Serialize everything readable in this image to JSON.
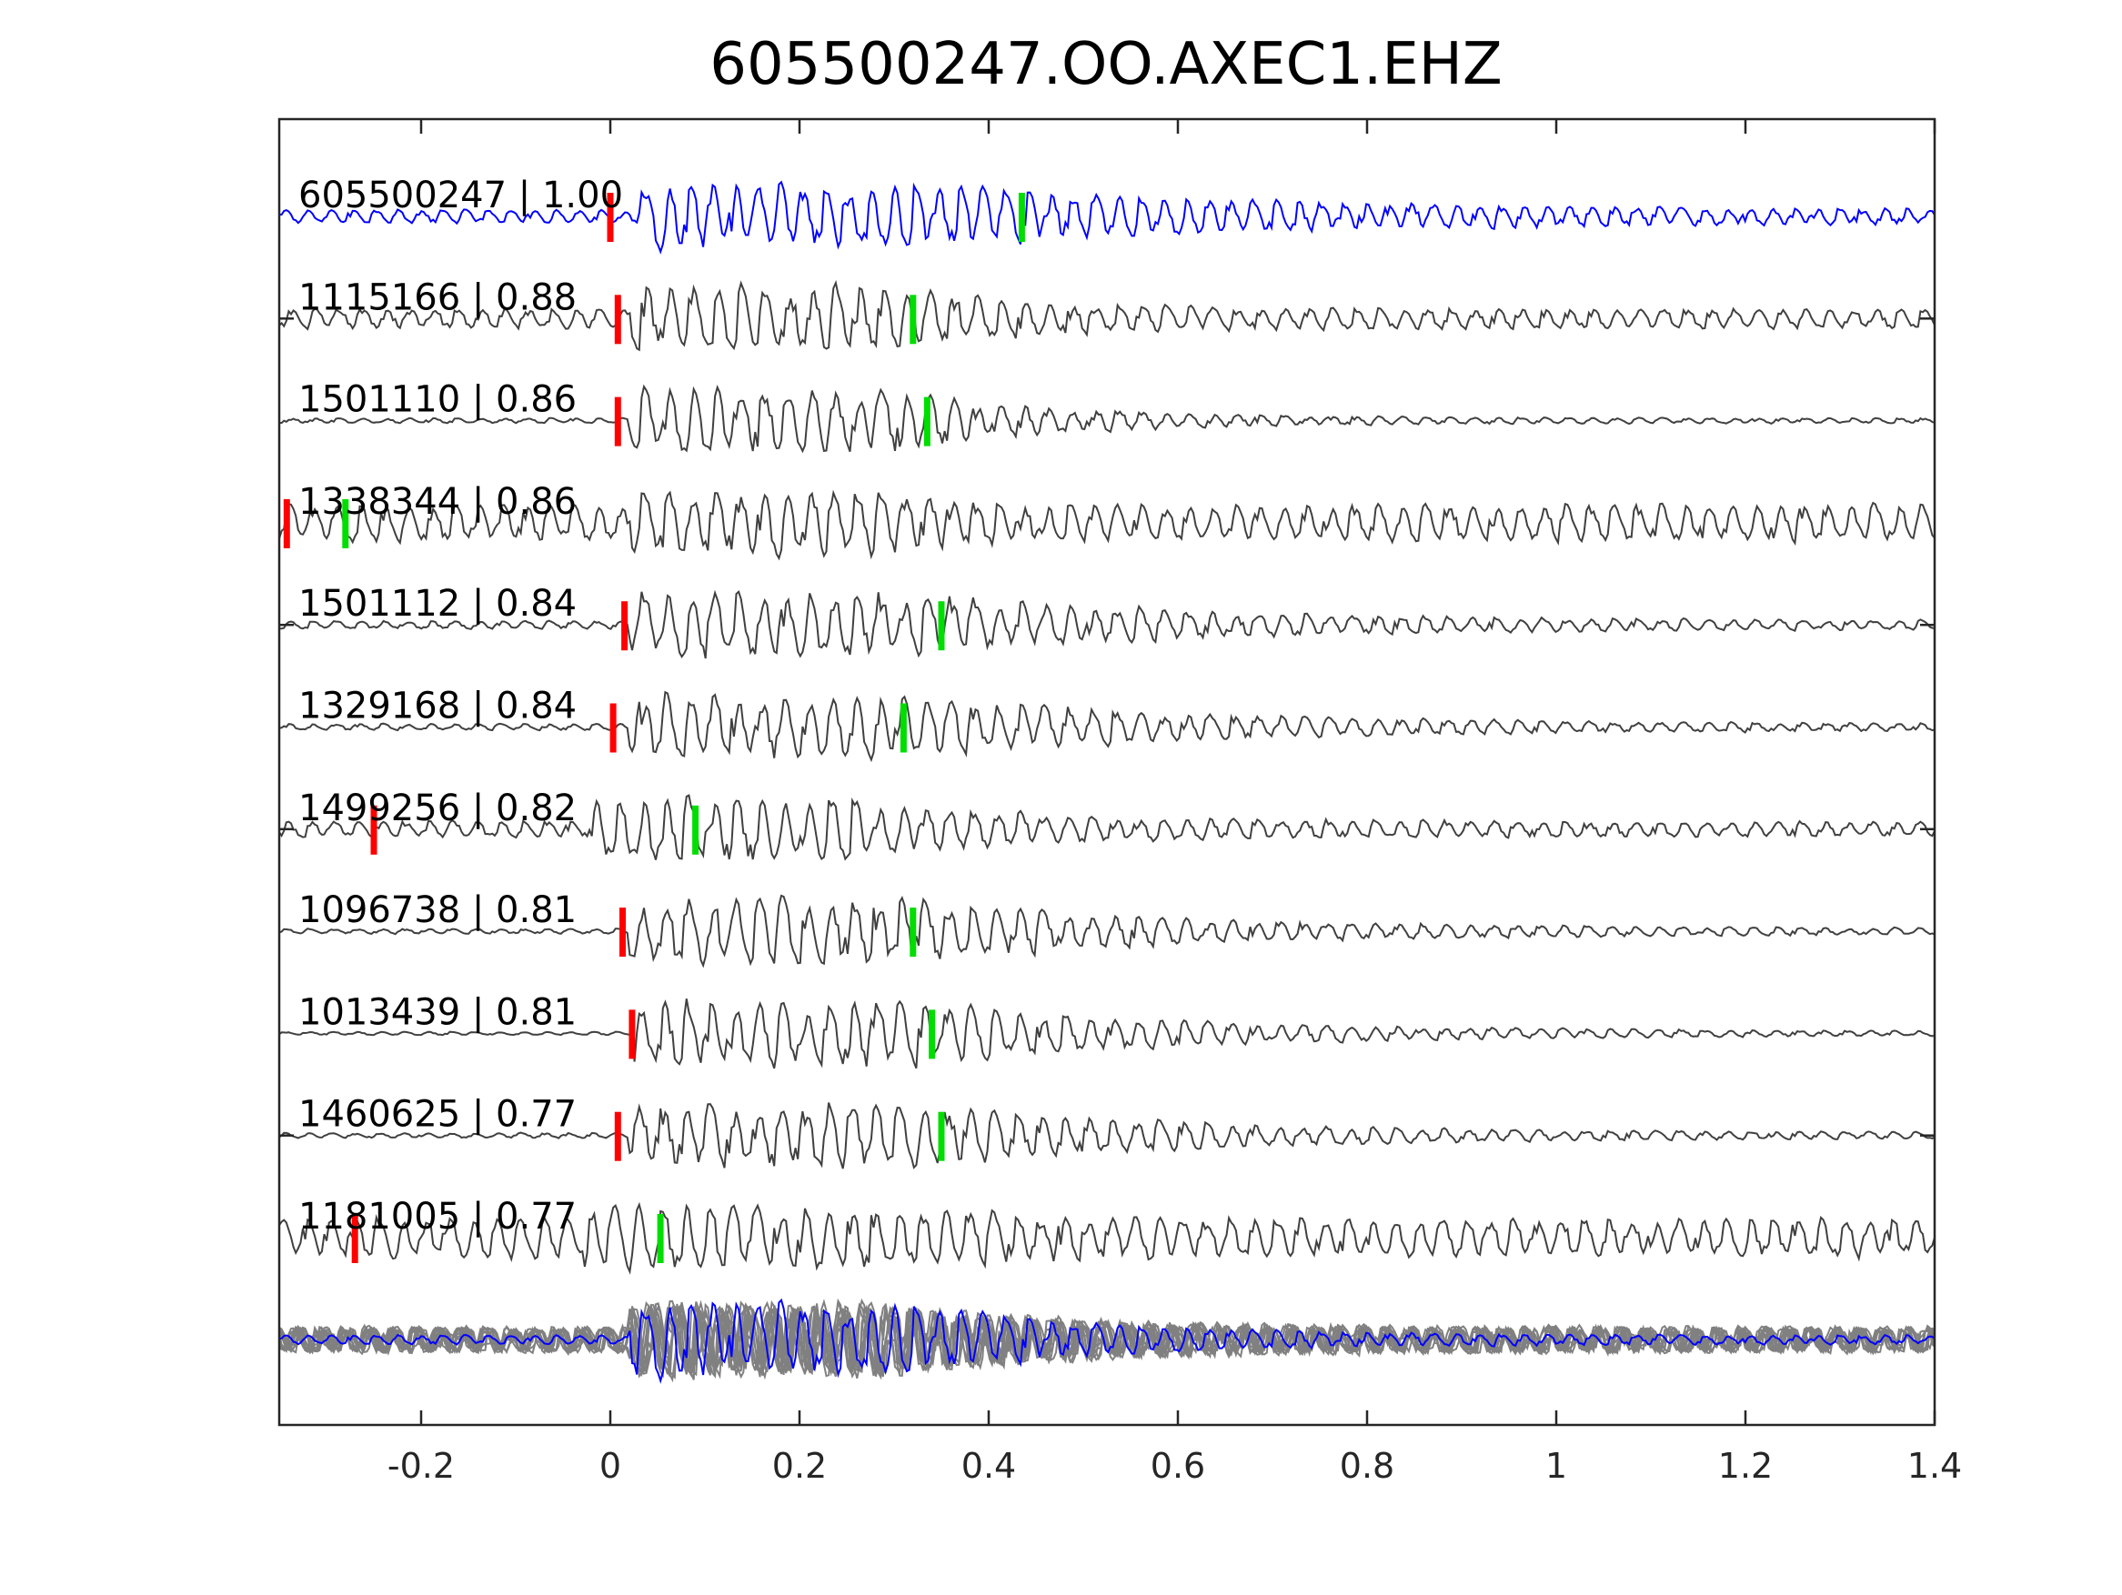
{
  "chart_data": {
    "type": "line",
    "title": "605500247.OO.AXEC1.EHZ",
    "xlabel": "",
    "ylabel": "",
    "xlim": [
      -0.35,
      1.4
    ],
    "x_ticks": [
      -0.2,
      0,
      0.2,
      0.4,
      0.6,
      0.8,
      1,
      1.2,
      1.4
    ],
    "x_tick_labels": [
      "-0.2",
      "0",
      "0.2",
      "0.4",
      "0.6",
      "0.8",
      "1",
      "1.2",
      "1.4"
    ],
    "grid": false,
    "colors": {
      "reference_trace": "#0000ff",
      "neighbor_trace": "#404040",
      "stack_trace": "#808080",
      "p_pick": "#ff0000",
      "s_pick": "#00dd00"
    },
    "series": [
      {
        "label": "605500247 | 1.00",
        "p_pick": 0.0,
        "s_pick": 0.435,
        "style": "reference",
        "onset": 0.03,
        "amp": 1.0,
        "noise": 0.2,
        "coda": 1.1,
        "freq": 42
      },
      {
        "label": "1115166 | 0.88",
        "p_pick": 0.008,
        "s_pick": 0.32,
        "style": "neighbor",
        "onset": 0.02,
        "amp": 1.0,
        "noise": 0.3,
        "coda": 0.4,
        "freq": 40
      },
      {
        "label": "1501110 | 0.86",
        "p_pick": 0.008,
        "s_pick": 0.335,
        "style": "neighbor",
        "onset": 0.02,
        "amp": 1.0,
        "noise": 0.08,
        "coda": 0.5,
        "freq": 40
      },
      {
        "label": "1338344 | 0.86",
        "p_pick": -0.342,
        "s_pick": -0.28,
        "style": "neighbor",
        "onset": 0.02,
        "amp": 1.0,
        "noise": 0.55,
        "coda": 0.25,
        "freq": 40
      },
      {
        "label": "1501112 | 0.84",
        "p_pick": 0.015,
        "s_pick": 0.35,
        "style": "neighbor",
        "onset": 0.02,
        "amp": 1.0,
        "noise": 0.12,
        "coda": 0.9,
        "freq": 40
      },
      {
        "label": "1329168 | 0.84",
        "p_pick": 0.003,
        "s_pick": 0.31,
        "style": "neighbor",
        "onset": 0.02,
        "amp": 1.0,
        "noise": 0.1,
        "coda": 0.9,
        "freq": 40
      },
      {
        "label": "1499256 | 0.82",
        "p_pick": -0.25,
        "s_pick": 0.09,
        "style": "neighbor",
        "onset": -0.02,
        "amp": 1.0,
        "noise": 0.25,
        "coda": 0.45,
        "freq": 40
      },
      {
        "label": "1096738 | 0.81",
        "p_pick": 0.013,
        "s_pick": 0.32,
        "style": "neighbor",
        "onset": 0.02,
        "amp": 1.0,
        "noise": 0.08,
        "coda": 0.9,
        "freq": 40
      },
      {
        "label": "1013439 | 0.81",
        "p_pick": 0.023,
        "s_pick": 0.34,
        "style": "neighbor",
        "onset": 0.025,
        "amp": 1.0,
        "noise": 0.05,
        "coda": 0.9,
        "freq": 40
      },
      {
        "label": "1460625 | 0.77",
        "p_pick": 0.008,
        "s_pick": 0.35,
        "style": "neighbor",
        "onset": 0.02,
        "amp": 1.0,
        "noise": 0.08,
        "coda": 0.9,
        "freq": 40
      },
      {
        "label": "1181005 | 0.77",
        "p_pick": -0.27,
        "s_pick": 0.053,
        "style": "neighbor",
        "onset": -0.03,
        "amp": 1.0,
        "noise": 0.6,
        "coda": 0.5,
        "freq": 40
      }
    ],
    "stack": {
      "style": "overlay",
      "n_gray": 10,
      "onset": 0.02
    }
  }
}
